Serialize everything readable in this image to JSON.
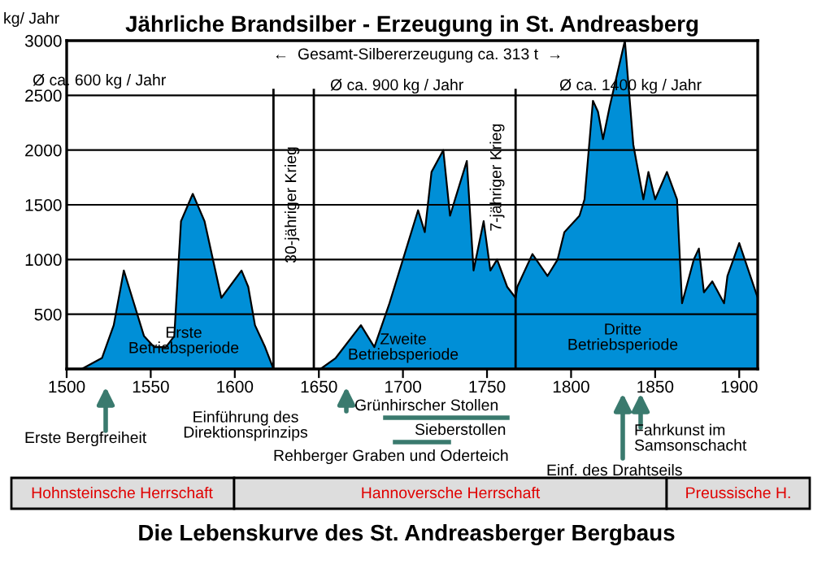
{
  "chart_data": {
    "type": "area",
    "title": "Jährliche Brandsilber - Erzeugung in St. Andreasberg",
    "subtitle": "Die Lebenskurve des St. Andreasberger Bergbaus",
    "ylabel": "kg/ Jahr",
    "series": [
      {
        "color": "#008fd7",
        "x": [
          1509,
          1521,
          1528,
          1534,
          1538,
          1546,
          1552,
          1559,
          1564,
          1568,
          1575,
          1582,
          1592,
          1604,
          1608,
          1612,
          1618,
          1623
        ],
        "values": [
          0,
          100,
          400,
          900,
          700,
          300,
          200,
          200,
          300,
          1350,
          1600,
          1350,
          650,
          900,
          750,
          400,
          200,
          0
        ]
      },
      {
        "color": "#008fd7",
        "x": [
          1651,
          1660,
          1675,
          1683,
          1692,
          1702,
          1709,
          1713,
          1717,
          1724,
          1728,
          1738,
          1742,
          1748,
          1752,
          1756,
          1762,
          1767,
          1768,
          1777,
          1786,
          1792,
          1796,
          1805,
          1808,
          1813,
          1816,
          1819,
          1823,
          1832,
          1837,
          1843,
          1846,
          1850,
          1857,
          1863,
          1866,
          1873,
          1876,
          1879,
          1884,
          1891,
          1893,
          1900,
          1911
        ],
        "values": [
          0,
          100,
          400,
          200,
          600,
          1100,
          1450,
          1250,
          1800,
          2000,
          1400,
          1900,
          900,
          1350,
          900,
          1000,
          750,
          650,
          750,
          1050,
          850,
          1000,
          1250,
          1400,
          1550,
          2450,
          2350,
          2100,
          2400,
          3000,
          2050,
          1550,
          1800,
          1550,
          1800,
          1550,
          600,
          1000,
          1100,
          700,
          800,
          600,
          850,
          1150,
          650
        ]
      }
    ],
    "xlim": [
      1500,
      1911
    ],
    "xticks": [
      1500,
      1550,
      1600,
      1650,
      1700,
      1750,
      1800,
      1850,
      1900
    ],
    "ylim": [
      0,
      3000
    ],
    "yticks": [
      500,
      1000,
      1500,
      2000,
      2500,
      3000
    ],
    "grid": "y",
    "ref_lines": [
      {
        "axis": "x",
        "value": 1623,
        "label": "30-jähriger Krieg"
      },
      {
        "axis": "x",
        "value": 1647
      },
      {
        "axis": "x",
        "value": 1767,
        "label": "7-jähriger Krieg"
      }
    ],
    "annotations": [
      "Ø ca. 600 kg / Jahr",
      "Ø ca. 900 kg / Jahr",
      "Ø ca. 1400 kg / Jahr",
      "←  Gesamt-Silbererzeugung ca. 313 t  →",
      "Erste\nBetriebsperiode",
      "Zweite\nBetriebsperiode",
      "Dritte\nBetriebsperiode",
      "Erste Bergfreiheit",
      "Einführung des\nDirektionsprinzips",
      "Grünhirscher Stollen",
      "Sieberstollen",
      "Rehberger Graben und Oderteich",
      "Einf. des Drahtseils",
      "Fahrkunst im\nSamsonschacht",
      "Hohnsteinsche Herrschaft",
      "Hannoversche Herrschaft",
      "Preussische H."
    ]
  }
}
